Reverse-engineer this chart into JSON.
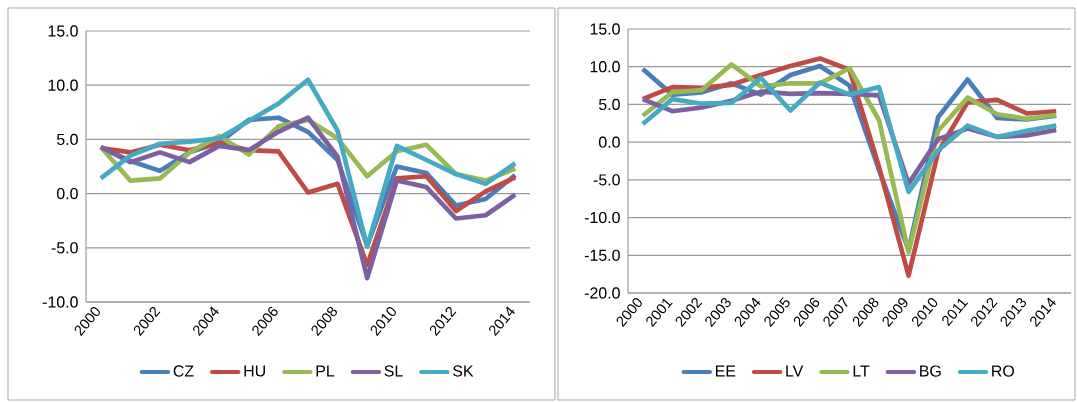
{
  "chart_data": [
    {
      "type": "line",
      "categories": [
        "2000",
        null,
        "2002",
        null,
        "2004",
        null,
        "2006",
        null,
        "2008",
        null,
        "2010",
        null,
        "2012",
        null,
        "2014"
      ],
      "series": [
        {
          "name": "CZ",
          "color": "#4a7ebb",
          "values": [
            4.3,
            3.0,
            2.1,
            3.8,
            4.7,
            6.8,
            7.0,
            5.7,
            3.1,
            -4.8,
            2.5,
            1.9,
            -1.1,
            -0.5,
            1.7
          ]
        },
        {
          "name": "HU",
          "color": "#be4b48",
          "values": [
            4.2,
            3.8,
            4.5,
            4.0,
            4.7,
            4.0,
            3.9,
            0.1,
            0.9,
            -6.6,
            1.4,
            1.6,
            -1.6,
            0.2,
            1.5
          ]
        },
        {
          "name": "PL",
          "color": "#98b954",
          "values": [
            4.3,
            1.2,
            1.4,
            3.8,
            5.3,
            3.6,
            6.2,
            6.8,
            5.1,
            1.6,
            3.9,
            4.5,
            1.8,
            1.2,
            2.3
          ]
        },
        {
          "name": "SL",
          "color": "#7d60a0",
          "values": [
            4.3,
            2.9,
            3.8,
            2.9,
            4.4,
            4.0,
            5.7,
            7.0,
            3.4,
            -7.8,
            1.2,
            0.6,
            -2.3,
            -2.0,
            -0.1
          ]
        },
        {
          "name": "SK",
          "color": "#46aac5",
          "values": [
            1.4,
            3.5,
            4.6,
            4.8,
            5.1,
            6.7,
            8.3,
            10.5,
            5.8,
            -4.9,
            4.4,
            3.1,
            1.8,
            0.9,
            2.8
          ]
        }
      ],
      "ylim": [
        -10,
        15
      ],
      "yticks": [
        {
          "value": -10,
          "label": "-10.0"
        },
        {
          "value": -5,
          "label": "-5.0"
        },
        {
          "value": 0,
          "label": "0.0"
        },
        {
          "value": 5,
          "label": "5.0"
        },
        {
          "value": 10,
          "label": "10.0"
        },
        {
          "value": 15,
          "label": "15.0"
        }
      ],
      "grid": "y",
      "legend": "bottom"
    },
    {
      "type": "line",
      "categories": [
        "2000",
        "2001",
        "2002",
        "2003",
        "2004",
        "2005",
        "2006",
        "2007",
        "2008",
        "2009",
        "2010",
        "2011",
        "2012",
        "2013",
        "2014"
      ],
      "series": [
        {
          "name": "EE",
          "color": "#4a7ebb",
          "values": [
            9.7,
            6.3,
            6.6,
            7.8,
            6.3,
            8.9,
            10.1,
            7.5,
            -3.7,
            -14.3,
            3.3,
            8.3,
            3.2,
            3.0,
            3.5
          ]
        },
        {
          "name": "LV",
          "color": "#be4b48",
          "values": [
            5.7,
            7.3,
            7.2,
            7.6,
            8.9,
            10.1,
            11.1,
            9.6,
            -3.3,
            -17.7,
            -1.3,
            5.3,
            5.6,
            3.8,
            4.1
          ]
        },
        {
          "name": "LT",
          "color": "#98b954",
          "values": [
            3.5,
            6.6,
            6.9,
            10.3,
            7.4,
            7.8,
            7.8,
            9.8,
            2.9,
            -14.6,
            1.5,
            5.9,
            3.7,
            3.1,
            3.6
          ]
        },
        {
          "name": "BG",
          "color": "#7d60a0",
          "values": [
            5.7,
            4.1,
            4.6,
            5.5,
            6.7,
            6.4,
            6.5,
            6.4,
            6.2,
            -5.5,
            0.4,
            1.8,
            0.7,
            0.9,
            1.6
          ]
        },
        {
          "name": "RO",
          "color": "#46aac5",
          "values": [
            2.4,
            5.7,
            5.1,
            5.2,
            8.5,
            4.2,
            7.9,
            6.3,
            7.3,
            -6.6,
            -1.1,
            2.2,
            0.7,
            1.5,
            2.2
          ]
        }
      ],
      "ylim": [
        -20,
        15
      ],
      "yticks": [
        {
          "value": -20,
          "label": "-20.0"
        },
        {
          "value": -15,
          "label": "-15.0"
        },
        {
          "value": -10,
          "label": "-10.0"
        },
        {
          "value": -5,
          "label": "-5.0"
        },
        {
          "value": 0,
          "label": "0.0"
        },
        {
          "value": 5,
          "label": "5.0"
        },
        {
          "value": 10,
          "label": "10.0"
        },
        {
          "value": 15,
          "label": "15.0"
        }
      ],
      "grid": "y",
      "legend": "bottom"
    }
  ]
}
